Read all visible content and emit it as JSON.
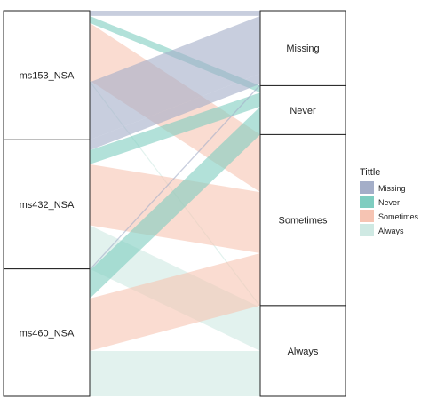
{
  "chart_data": {
    "type": "alluvial",
    "axes": [
      {
        "strata": [
          "ms153_NSA",
          "ms432_NSA",
          "ms460_NSA"
        ]
      },
      {
        "strata": [
          "Missing",
          "Never",
          "Sometimes",
          "Always"
        ]
      }
    ],
    "legend": {
      "title": "Tittle",
      "position": "right",
      "entries": [
        {
          "name": "Missing",
          "color": "#a4aec8"
        },
        {
          "name": "Never",
          "color": "#7ecdc0"
        },
        {
          "name": "Sometimes",
          "color": "#f6c4b3"
        },
        {
          "name": "Always",
          "color": "#cfe9e3"
        }
      ]
    },
    "flows": [
      {
        "from": "ms153_NSA",
        "to": "Missing",
        "fill": "Missing",
        "value": 3
      },
      {
        "from": "ms153_NSA",
        "to": "Never",
        "fill": "Never",
        "value": 4
      },
      {
        "from": "ms153_NSA",
        "to": "Sometimes",
        "fill": "Sometimes",
        "value": 33
      },
      {
        "from": "ms153_NSA",
        "to": "Always",
        "fill": "Always",
        "value": 1
      },
      {
        "from": "ms153_NSA",
        "to": "Missing",
        "fill": "Missing",
        "value": 33
      },
      {
        "from": "ms432_NSA",
        "to": "Missing",
        "fill": "Missing",
        "value": 6
      },
      {
        "from": "ms432_NSA",
        "to": "Never",
        "fill": "Never",
        "value": 8
      },
      {
        "from": "ms432_NSA",
        "to": "Sometimes",
        "fill": "Sometimes",
        "value": 35
      },
      {
        "from": "ms432_NSA",
        "to": "Always",
        "fill": "Always",
        "value": 25
      },
      {
        "from": "ms460_NSA",
        "to": "Missing",
        "fill": "Missing",
        "value": 1
      },
      {
        "from": "ms460_NSA",
        "to": "Never",
        "fill": "Never",
        "value": 16
      },
      {
        "from": "ms460_NSA",
        "to": "Sometimes",
        "fill": "Sometimes",
        "value": 30
      },
      {
        "from": "ms460_NSA",
        "to": "Always",
        "fill": "Always",
        "value": 26
      }
    ]
  }
}
